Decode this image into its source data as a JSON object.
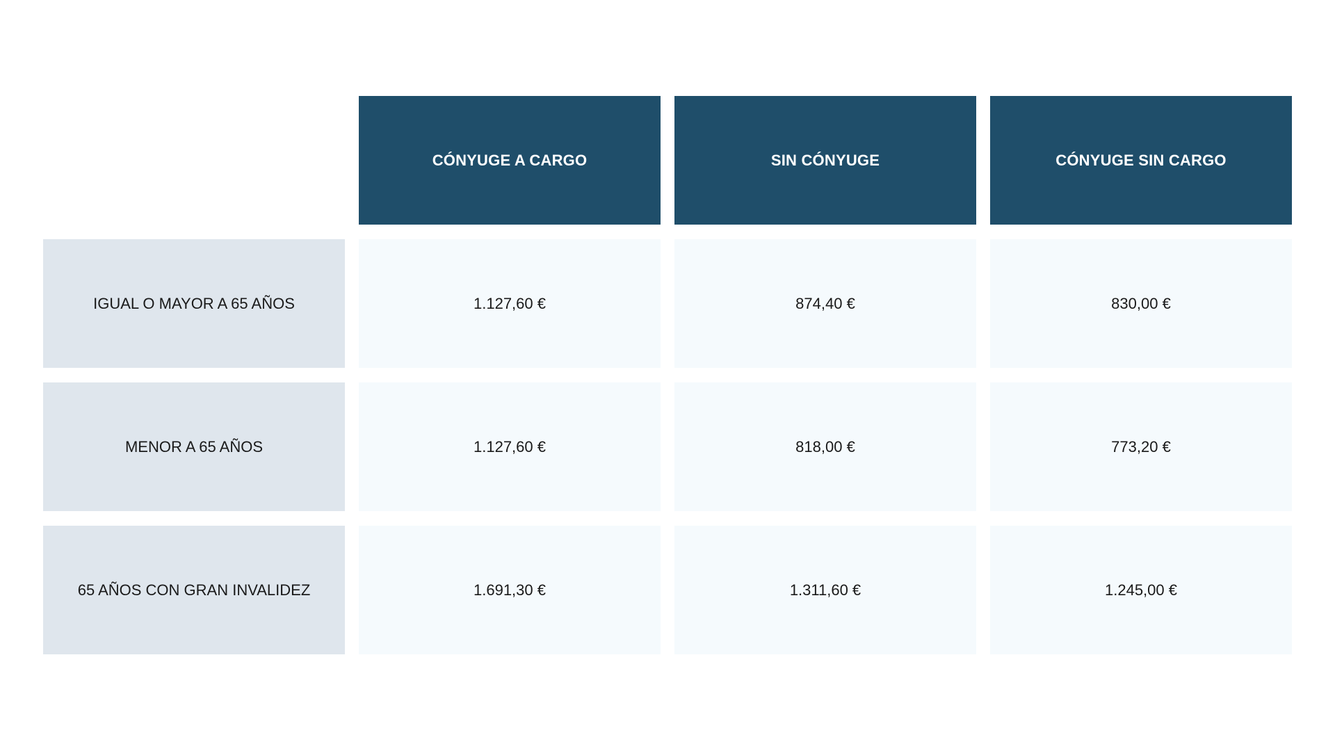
{
  "table": {
    "columns": [
      "CÓNYUGE A CARGO",
      "SIN CÓNYUGE",
      "CÓNYUGE SIN CARGO"
    ],
    "rows": [
      {
        "label": "IGUAL O MAYOR A 65 AÑOS",
        "values": [
          "1.127,60 €",
          "874,40 €",
          "830,00 €"
        ]
      },
      {
        "label": "MENOR A 65 AÑOS",
        "values": [
          "1.127,60 €",
          "818,00 €",
          "773,20 €"
        ]
      },
      {
        "label": "65 AÑOS CON GRAN INVALIDEZ",
        "values": [
          "1.691,30 €",
          "1.311,60 €",
          "1.245,00 €"
        ]
      }
    ]
  },
  "colors": {
    "header_bg": "#1f4e6a",
    "label_bg": "#dfe6ed",
    "cell_bg": "#f5fafd"
  }
}
